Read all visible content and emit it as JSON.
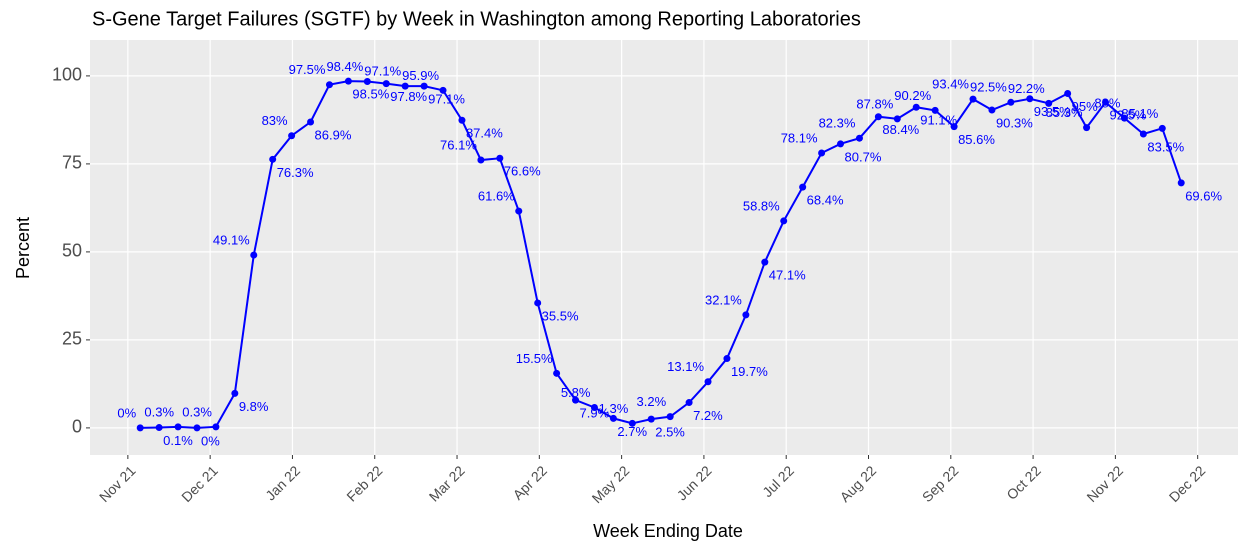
{
  "chart_data": {
    "type": "line",
    "title": "S-Gene Target Failures (SGTF) by Week in Washington among Reporting Laboratories",
    "x_label": "Week Ending Date",
    "y_label": "Percent",
    "x": [
      0.15,
      0.38,
      0.61,
      0.84,
      1.07,
      1.3,
      1.53,
      1.76,
      1.99,
      2.22,
      2.45,
      2.68,
      2.91,
      3.14,
      3.37,
      3.6,
      3.83,
      4.06,
      4.29,
      4.52,
      4.75,
      4.98,
      5.21,
      5.44,
      5.67,
      5.9,
      6.13,
      6.36,
      6.59,
      6.82,
      7.05,
      7.28,
      7.51,
      7.74,
      7.97,
      8.2,
      8.43,
      8.66,
      8.89,
      9.12,
      9.35,
      9.58,
      9.81,
      10.04,
      10.27,
      10.5,
      10.73,
      10.96,
      11.19,
      11.42,
      11.65,
      11.88,
      12.11,
      12.34,
      12.57,
      12.8
    ],
    "values": [
      0,
      0.1,
      0.3,
      0,
      0.3,
      9.8,
      49.1,
      76.3,
      83,
      86.9,
      97.5,
      98.5,
      98.4,
      97.8,
      97.1,
      97.1,
      95.9,
      87.4,
      76.1,
      76.6,
      61.6,
      35.5,
      15.5,
      7.9,
      5.8,
      2.7,
      1.3,
      2.5,
      3.2,
      7.2,
      13.1,
      19.7,
      32.1,
      47.1,
      58.8,
      68.4,
      78.1,
      80.7,
      82.3,
      88.4,
      87.8,
      91.1,
      90.2,
      85.6,
      93.4,
      90.3,
      92.5,
      93.5,
      92.2,
      95,
      85.3,
      92.5,
      88,
      83.5,
      85.1,
      69.6
    ],
    "value_labels": [
      "0%",
      "0.1%",
      "0.3%",
      "0%",
      "0.3%",
      "9.8%",
      "49.1%",
      "76.3%",
      "83%",
      "86.9%",
      "97.5%",
      "98.5%",
      "98.4%",
      "97.8%",
      "97.1%",
      "97.1%",
      "95.9%",
      "87.4%",
      "76.1%",
      "76.6%",
      "61.6%",
      "35.5%",
      "15.5%",
      "7.9%",
      "5.8%",
      "2.7%",
      "1.3%",
      "2.5%",
      "3.2%",
      "7.2%",
      "13.1%",
      "19.7%",
      "32.1%",
      "47.1%",
      "58.8%",
      "68.4%",
      "78.1%",
      "80.7%",
      "82.3%",
      "88.4%",
      "87.8%",
      "91.1%",
      "90.2%",
      "85.6%",
      "93.4%",
      "90.3%",
      "92.5%",
      "93.5%",
      "92.2%",
      "95%",
      "85.3%",
      "92.5%",
      "88%",
      "83.5%",
      "85.1%",
      "69.6%"
    ],
    "color": "#0000ff",
    "xlim": [
      -0.46,
      13.49
    ],
    "xticks": [
      {
        "value": 0,
        "label": "Nov 21"
      },
      {
        "value": 1,
        "label": "Dec 21"
      },
      {
        "value": 2,
        "label": "Jan 22"
      },
      {
        "value": 3,
        "label": "Feb 22"
      },
      {
        "value": 4,
        "label": "Mar 22"
      },
      {
        "value": 5,
        "label": "Apr 22"
      },
      {
        "value": 6,
        "label": "May 22"
      },
      {
        "value": 7,
        "label": "Jun 22"
      },
      {
        "value": 8,
        "label": "Jul 22"
      },
      {
        "value": 9,
        "label": "Aug 22"
      },
      {
        "value": 10,
        "label": "Sep 22"
      },
      {
        "value": 11,
        "label": "Oct 22"
      },
      {
        "value": 12,
        "label": "Nov 22"
      },
      {
        "value": 13,
        "label": "Dec 22"
      }
    ],
    "ylim": [
      -7.7,
      110.2
    ],
    "yticks": [
      0,
      25,
      50,
      75,
      100
    ],
    "grid": true
  }
}
